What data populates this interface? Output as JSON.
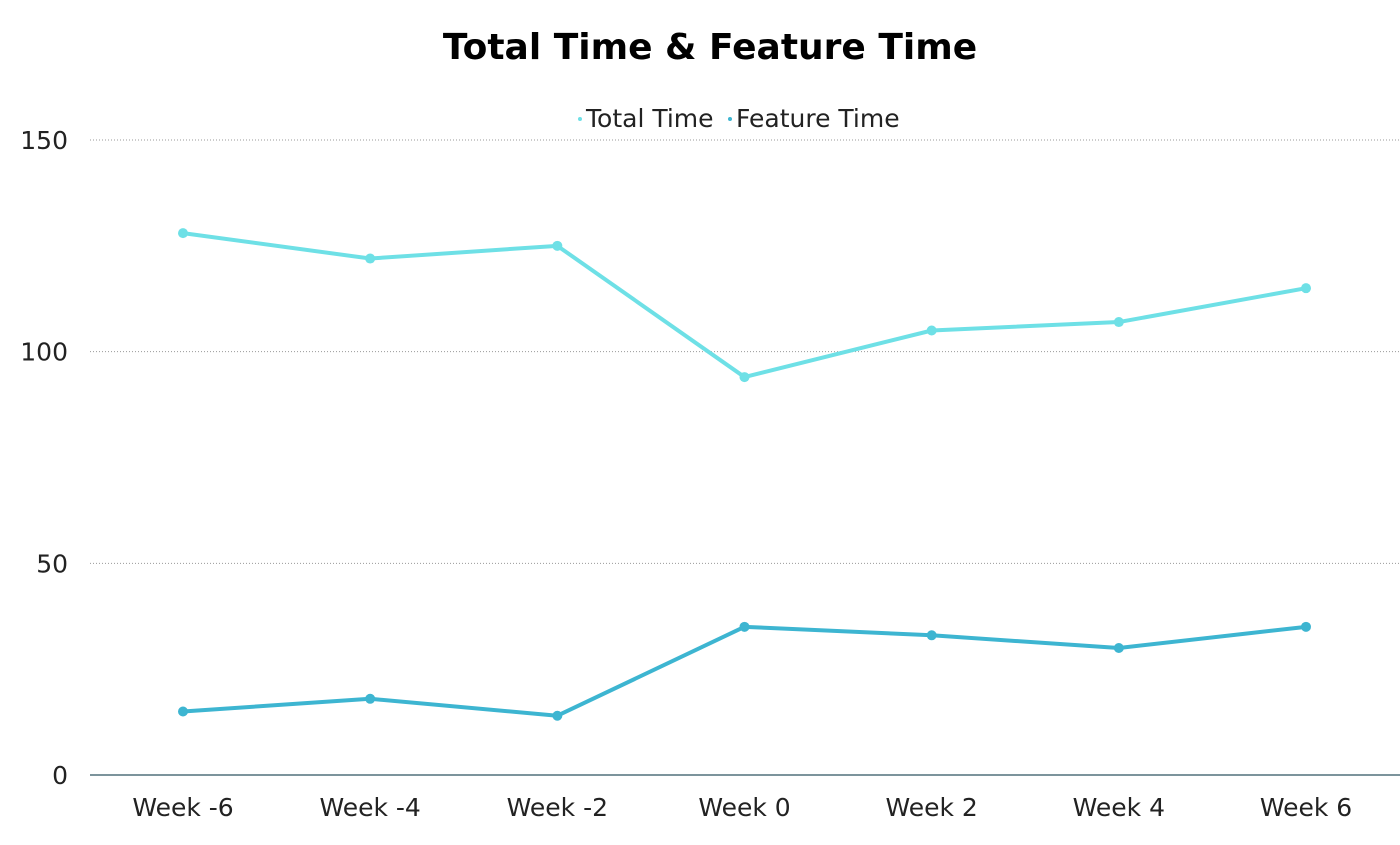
{
  "chart_data": {
    "type": "line",
    "title": "Total Time & Feature Time",
    "xlabel": "",
    "ylabel": "",
    "categories": [
      "Week -6",
      "Week -4",
      "Week -2",
      "Week 0",
      "Week 2",
      "Week 4",
      "Week 6"
    ],
    "series": [
      {
        "name": "Total Time",
        "color": "#6ee0e6",
        "values": [
          128,
          122,
          125,
          94,
          105,
          107,
          115
        ]
      },
      {
        "name": "Feature Time",
        "color": "#3db5d1",
        "values": [
          15,
          18,
          14,
          35,
          33,
          30,
          35
        ]
      }
    ],
    "ylim": [
      0,
      150
    ],
    "yticks": [
      "0",
      "50",
      "100",
      "150"
    ],
    "grid": true,
    "legend": "top-center"
  }
}
